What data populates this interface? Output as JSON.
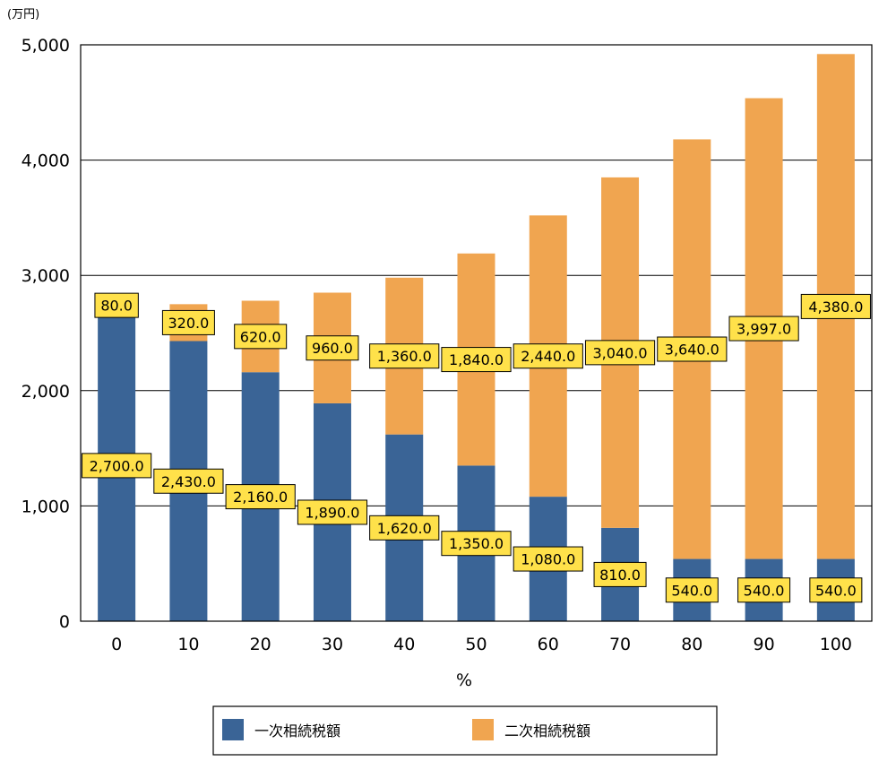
{
  "chart_data": {
    "type": "bar",
    "stacked": true,
    "unit_label": "(万円)",
    "xlabel": "%",
    "ylabel": "",
    "ylim": [
      0,
      5000
    ],
    "y_ticks": [
      0,
      1000,
      2000,
      3000,
      4000,
      5000
    ],
    "y_tick_labels": [
      "0",
      "1,000",
      "2,000",
      "3,000",
      "4,000",
      "5,000"
    ],
    "grid": true,
    "legend_position": "bottom",
    "categories": [
      "0",
      "10",
      "20",
      "30",
      "40",
      "50",
      "60",
      "70",
      "80",
      "90",
      "100"
    ],
    "series": [
      {
        "name": "一次相続税額",
        "color": "#3a6496",
        "values": [
          2700,
          2430,
          2160,
          1890,
          1620,
          1350,
          1080,
          810,
          540,
          540,
          540
        ],
        "labels": [
          "2,700.0",
          "2,430.0",
          "2,160.0",
          "1,890.0",
          "1,620.0",
          "1,350.0",
          "1,080.0",
          "810.0",
          "540.0",
          "540.0",
          "540.0"
        ]
      },
      {
        "name": "二次相続税額",
        "color": "#f0a550",
        "values": [
          80,
          320,
          620,
          960,
          1360,
          1840,
          2440,
          3040,
          3640,
          3997,
          4380
        ],
        "labels": [
          "80.0",
          "320.0",
          "620.0",
          "960.0",
          "1,360.0",
          "1,840.0",
          "2,440.0",
          "3,040.0",
          "3,640.0",
          "3,997.0",
          "4,380.0"
        ]
      }
    ],
    "label_box_color": "#ffe14a"
  }
}
